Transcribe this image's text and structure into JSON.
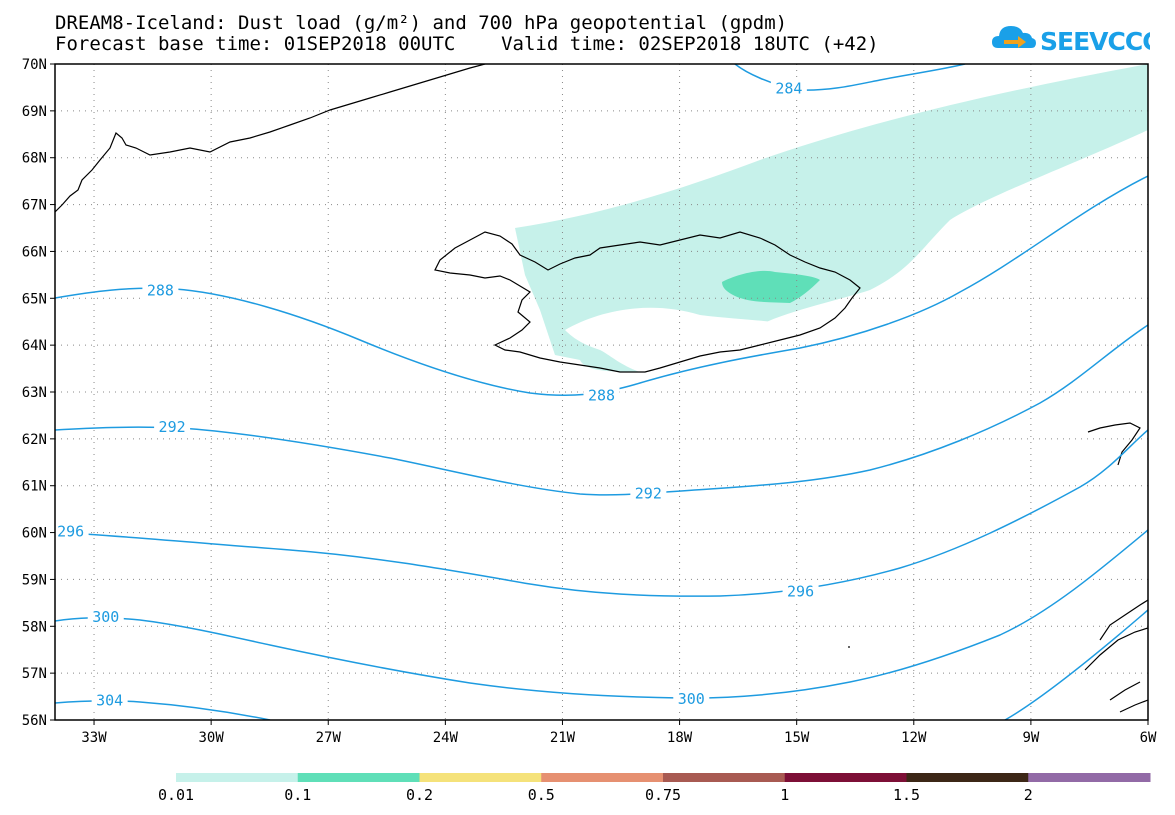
{
  "header": {
    "title_line1": "DREAM8-Iceland: Dust load (g/m²) and 700 hPa geopotential (gpdm)",
    "title_line2": "Forecast base time: 01SEP2018 00UTC    Valid time: 02SEP2018 18UTC (+42)",
    "logo_text": "SEEVCCC",
    "logo_icon": "cloud-arrow-icon"
  },
  "map": {
    "projection": "lat-lon",
    "lon_range": [
      -34.0,
      -6.0
    ],
    "lat_range": [
      56.0,
      70.0
    ],
    "lat_ticks": [
      "70N",
      "69N",
      "68N",
      "67N",
      "66N",
      "65N",
      "64N",
      "63N",
      "62N",
      "61N",
      "60N",
      "59N",
      "58N",
      "57N",
      "56N"
    ],
    "lon_ticks": [
      "33W",
      "30W",
      "27W",
      "24W",
      "21W",
      "18W",
      "15W",
      "12W",
      "9W",
      "6W"
    ],
    "grid": true,
    "contour_color": "#1e9be0",
    "contour_labels": [
      {
        "value": "284",
        "lon": -15.2,
        "lat": 69.48
      },
      {
        "value": "288",
        "lon": -31.3,
        "lat": 65.17
      },
      {
        "value": "288",
        "lon": -20.0,
        "lat": 62.93
      },
      {
        "value": "292",
        "lon": -31.0,
        "lat": 62.25
      },
      {
        "value": "292",
        "lon": -18.8,
        "lat": 60.83
      },
      {
        "value": "296",
        "lon": -33.6,
        "lat": 60.02
      },
      {
        "value": "296",
        "lon": -14.9,
        "lat": 58.74
      },
      {
        "value": "300",
        "lon": -32.7,
        "lat": 58.2
      },
      {
        "value": "300",
        "lon": -17.7,
        "lat": 56.45
      },
      {
        "value": "304",
        "lon": -32.6,
        "lat": 56.42
      }
    ],
    "dust_levels": [
      {
        "class": "0.01-0.1",
        "color": "#c6f1ea",
        "region": "plume over Iceland extending northeast"
      },
      {
        "class": "0.1-0.2",
        "color": "#5fdfb8",
        "region": "central Iceland patch"
      }
    ]
  },
  "colorbar": {
    "colors": [
      "#c6f1ea",
      "#5fdfb8",
      "#f5e27a",
      "#e69071",
      "#a85a52",
      "#7d0f36",
      "#3c2716",
      "#926aa6"
    ],
    "labels": [
      "0.01",
      "0.1",
      "0.2",
      "0.5",
      "0.75",
      "1",
      "1.5",
      "2"
    ]
  }
}
